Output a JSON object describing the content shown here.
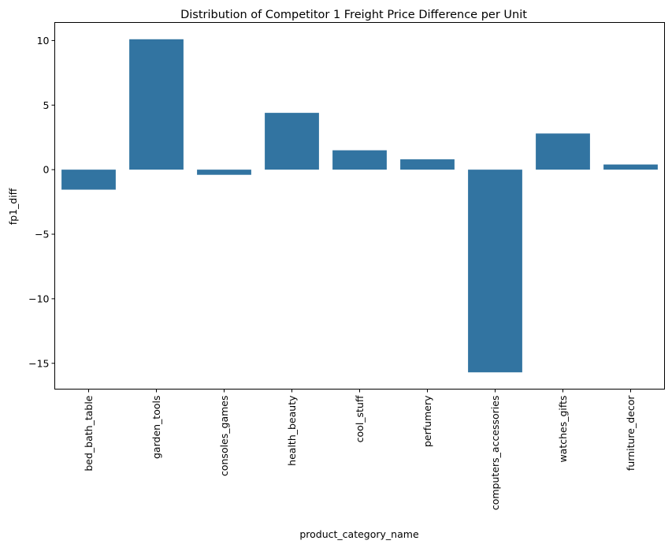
{
  "chart_data": {
    "type": "bar",
    "title": "Distribution of Competitor 1 Freight Price Difference per Unit",
    "xlabel": "product_category_name",
    "ylabel": "fp1_diff",
    "categories": [
      "bed_bath_table",
      "garden_tools",
      "consoles_games",
      "health_beauty",
      "cool_stuff",
      "perfumery",
      "computers_accessories",
      "watches_gifts",
      "furniture_decor"
    ],
    "values": [
      -1.55,
      10.1,
      -0.4,
      4.4,
      1.5,
      0.8,
      -15.7,
      2.8,
      0.4
    ],
    "ylim": [
      -17,
      11.4
    ],
    "yticks": [
      10,
      5,
      0,
      -5,
      -10,
      -15
    ],
    "ytick_labels": [
      "10",
      "5",
      "0",
      "−5",
      "−10",
      "−15"
    ],
    "grid": false,
    "bar_color": "#3274a1"
  }
}
